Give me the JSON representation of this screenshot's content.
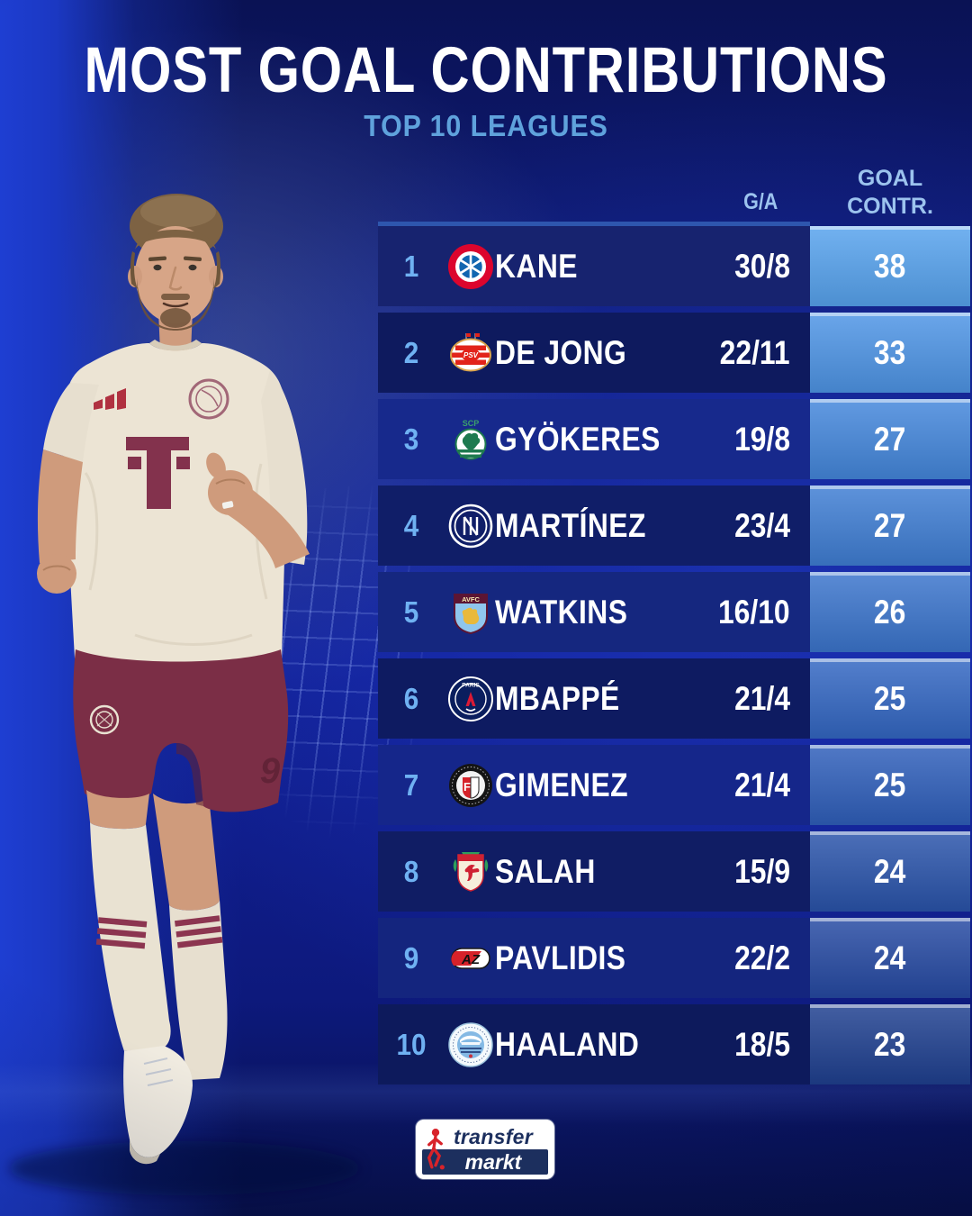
{
  "chart_data": {
    "type": "table",
    "title": "MOST GOAL CONTRIBUTIONS",
    "subtitle": "TOP 10 LEAGUES",
    "columns": {
      "ga": "G/A",
      "contr_line1": "GOAL",
      "contr_line2": "CONTR."
    },
    "rows": [
      {
        "rank": "1",
        "player": "KANE",
        "club": "bayern-munich",
        "badge_icon": "bayern-munich-badge",
        "badge_text": "",
        "ga": "30/8",
        "contr": "38",
        "row_bg": "#17236f",
        "contr_bg": "#57a3ee"
      },
      {
        "rank": "2",
        "player": "DE JONG",
        "club": "psv",
        "badge_icon": "psv-eindhoven-badge",
        "badge_text": "PSV",
        "ga": "22/11",
        "contr": "33",
        "row_bg": "#0e1a5e",
        "contr_bg": "#4e95e6"
      },
      {
        "rank": "3",
        "player": "GYÖKERES",
        "club": "sporting",
        "badge_icon": "sporting-cp-badge",
        "badge_text": "SCP",
        "ga": "19/8",
        "contr": "27",
        "row_bg": "#17298c",
        "contr_bg": "#4487dc"
      },
      {
        "rank": "4",
        "player": "MARTÍNEZ",
        "club": "inter",
        "badge_icon": "inter-milan-badge",
        "badge_text": "",
        "ga": "23/4",
        "contr": "27",
        "row_bg": "#101e68",
        "contr_bg": "#3f7ed4"
      },
      {
        "rank": "5",
        "player": "WATKINS",
        "club": "aston-villa",
        "badge_icon": "aston-villa-badge",
        "badge_text": "AVFC",
        "ga": "16/10",
        "contr": "26",
        "row_bg": "#15277f",
        "contr_bg": "#3b75cd"
      },
      {
        "rank": "6",
        "player": "MBAPPÉ",
        "club": "psg",
        "badge_icon": "psg-badge",
        "badge_text": "PARIS",
        "ga": "21/4",
        "contr": "25",
        "row_bg": "#0e1b61",
        "contr_bg": "#3367c3"
      },
      {
        "rank": "7",
        "player": "GIMENEZ",
        "club": "feyenoord",
        "badge_icon": "feyenoord-badge",
        "badge_text": "F",
        "ga": "21/4",
        "contr": "25",
        "row_bg": "#15268a",
        "contr_bg": "#2f5fbb"
      },
      {
        "rank": "8",
        "player": "SALAH",
        "club": "liverpool",
        "badge_icon": "liverpool-badge",
        "badge_text": "",
        "ga": "15/9",
        "contr": "24",
        "row_bg": "#101d64",
        "contr_bg": "#2a54ab"
      },
      {
        "rank": "9",
        "player": "PAVLIDIS",
        "club": "az-alkmaar",
        "badge_icon": "az-alkmaar-badge",
        "badge_text": "AZ",
        "ga": "22/2",
        "contr": "24",
        "row_bg": "#14257e",
        "contr_bg": "#264aa3"
      },
      {
        "rank": "10",
        "player": "HAALAND",
        "club": "man-city",
        "badge_icon": "manchester-city-badge",
        "badge_text": "",
        "ga": "18/5",
        "contr": "23",
        "row_bg": "#0d1a5c",
        "contr_bg": "#1f4090"
      }
    ]
  },
  "photo": {
    "shorts_number": "9"
  },
  "footer": {
    "brand_top": "transfer",
    "brand_bottom": "markt"
  },
  "colors": {
    "title": "#ffffff",
    "subtitle": "#5fa2dc",
    "header_label": "#9cc3ee",
    "rank_text": "#6fb1f2",
    "topline": "#2e56ae"
  }
}
